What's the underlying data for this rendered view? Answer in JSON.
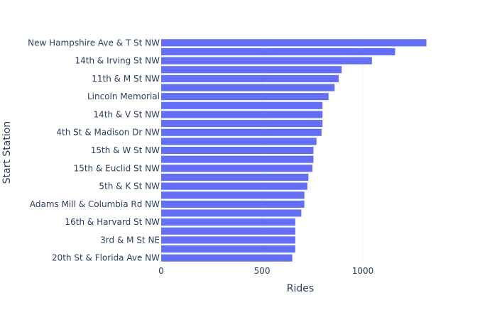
{
  "chart_data": {
    "type": "bar",
    "orientation": "horizontal",
    "title": "",
    "xlabel": "Rides",
    "ylabel": "Start Station",
    "xlim": [
      0,
      1380
    ],
    "xticks": [
      0,
      500,
      1000
    ],
    "grid": true,
    "bar_color": "#636efa",
    "categories": [
      "New Hampshire Ave & T St NW",
      "",
      "14th & Irving St NW",
      "",
      "11th & M St NW",
      "",
      "Lincoln Memorial",
      "",
      "14th & V St NW",
      "",
      "4th St & Madison Dr NW",
      "",
      "15th & W St NW",
      "",
      "15th & Euclid St  NW",
      "",
      "5th & K St NW",
      "",
      "Adams Mill & Columbia Rd NW",
      "",
      "16th & Harvard St NW",
      "",
      "3rd & M St NE",
      "",
      "20th St & Florida Ave NW"
    ],
    "values": [
      1315,
      1160,
      1045,
      895,
      880,
      860,
      830,
      800,
      800,
      800,
      795,
      770,
      755,
      755,
      750,
      730,
      725,
      710,
      710,
      695,
      665,
      665,
      665,
      665,
      650
    ]
  }
}
